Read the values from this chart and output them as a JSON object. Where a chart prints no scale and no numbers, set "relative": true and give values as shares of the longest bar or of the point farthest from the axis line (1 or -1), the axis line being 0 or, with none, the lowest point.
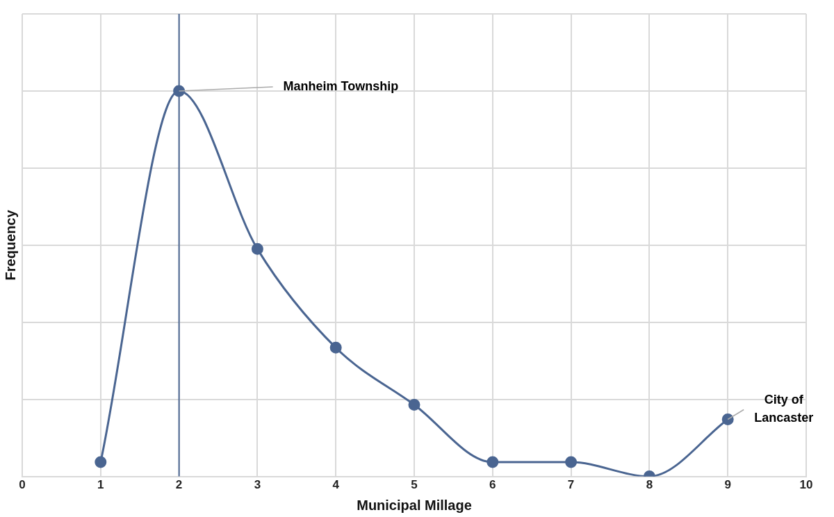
{
  "chart_data": {
    "type": "line",
    "xlabel": "Municipal Millage",
    "ylabel": "Frequency",
    "relative": true,
    "series": [
      {
        "color": "#4a6591",
        "x": [
          1,
          2,
          3,
          4,
          5,
          6,
          7,
          8,
          9
        ],
        "values": [
          0.037,
          1,
          0.59,
          0.334,
          0.186,
          0.037,
          0.037,
          0,
          0.148
        ]
      }
    ],
    "xlim": [
      0,
      10
    ],
    "xticks": [
      0,
      1,
      2,
      3,
      4,
      5,
      6,
      7,
      8,
      9,
      10
    ],
    "ref_lines": [
      {
        "axis": "x",
        "value": 2,
        "color": "#4a6591"
      }
    ],
    "annotations": [
      {
        "text": "Manheim Township",
        "x": 2,
        "y": 1
      },
      {
        "text": "City of Lancaster",
        "x": 9,
        "y": 0.148
      }
    ],
    "grid": true,
    "legend": false,
    "marker": "circle",
    "line_style": "solid"
  }
}
